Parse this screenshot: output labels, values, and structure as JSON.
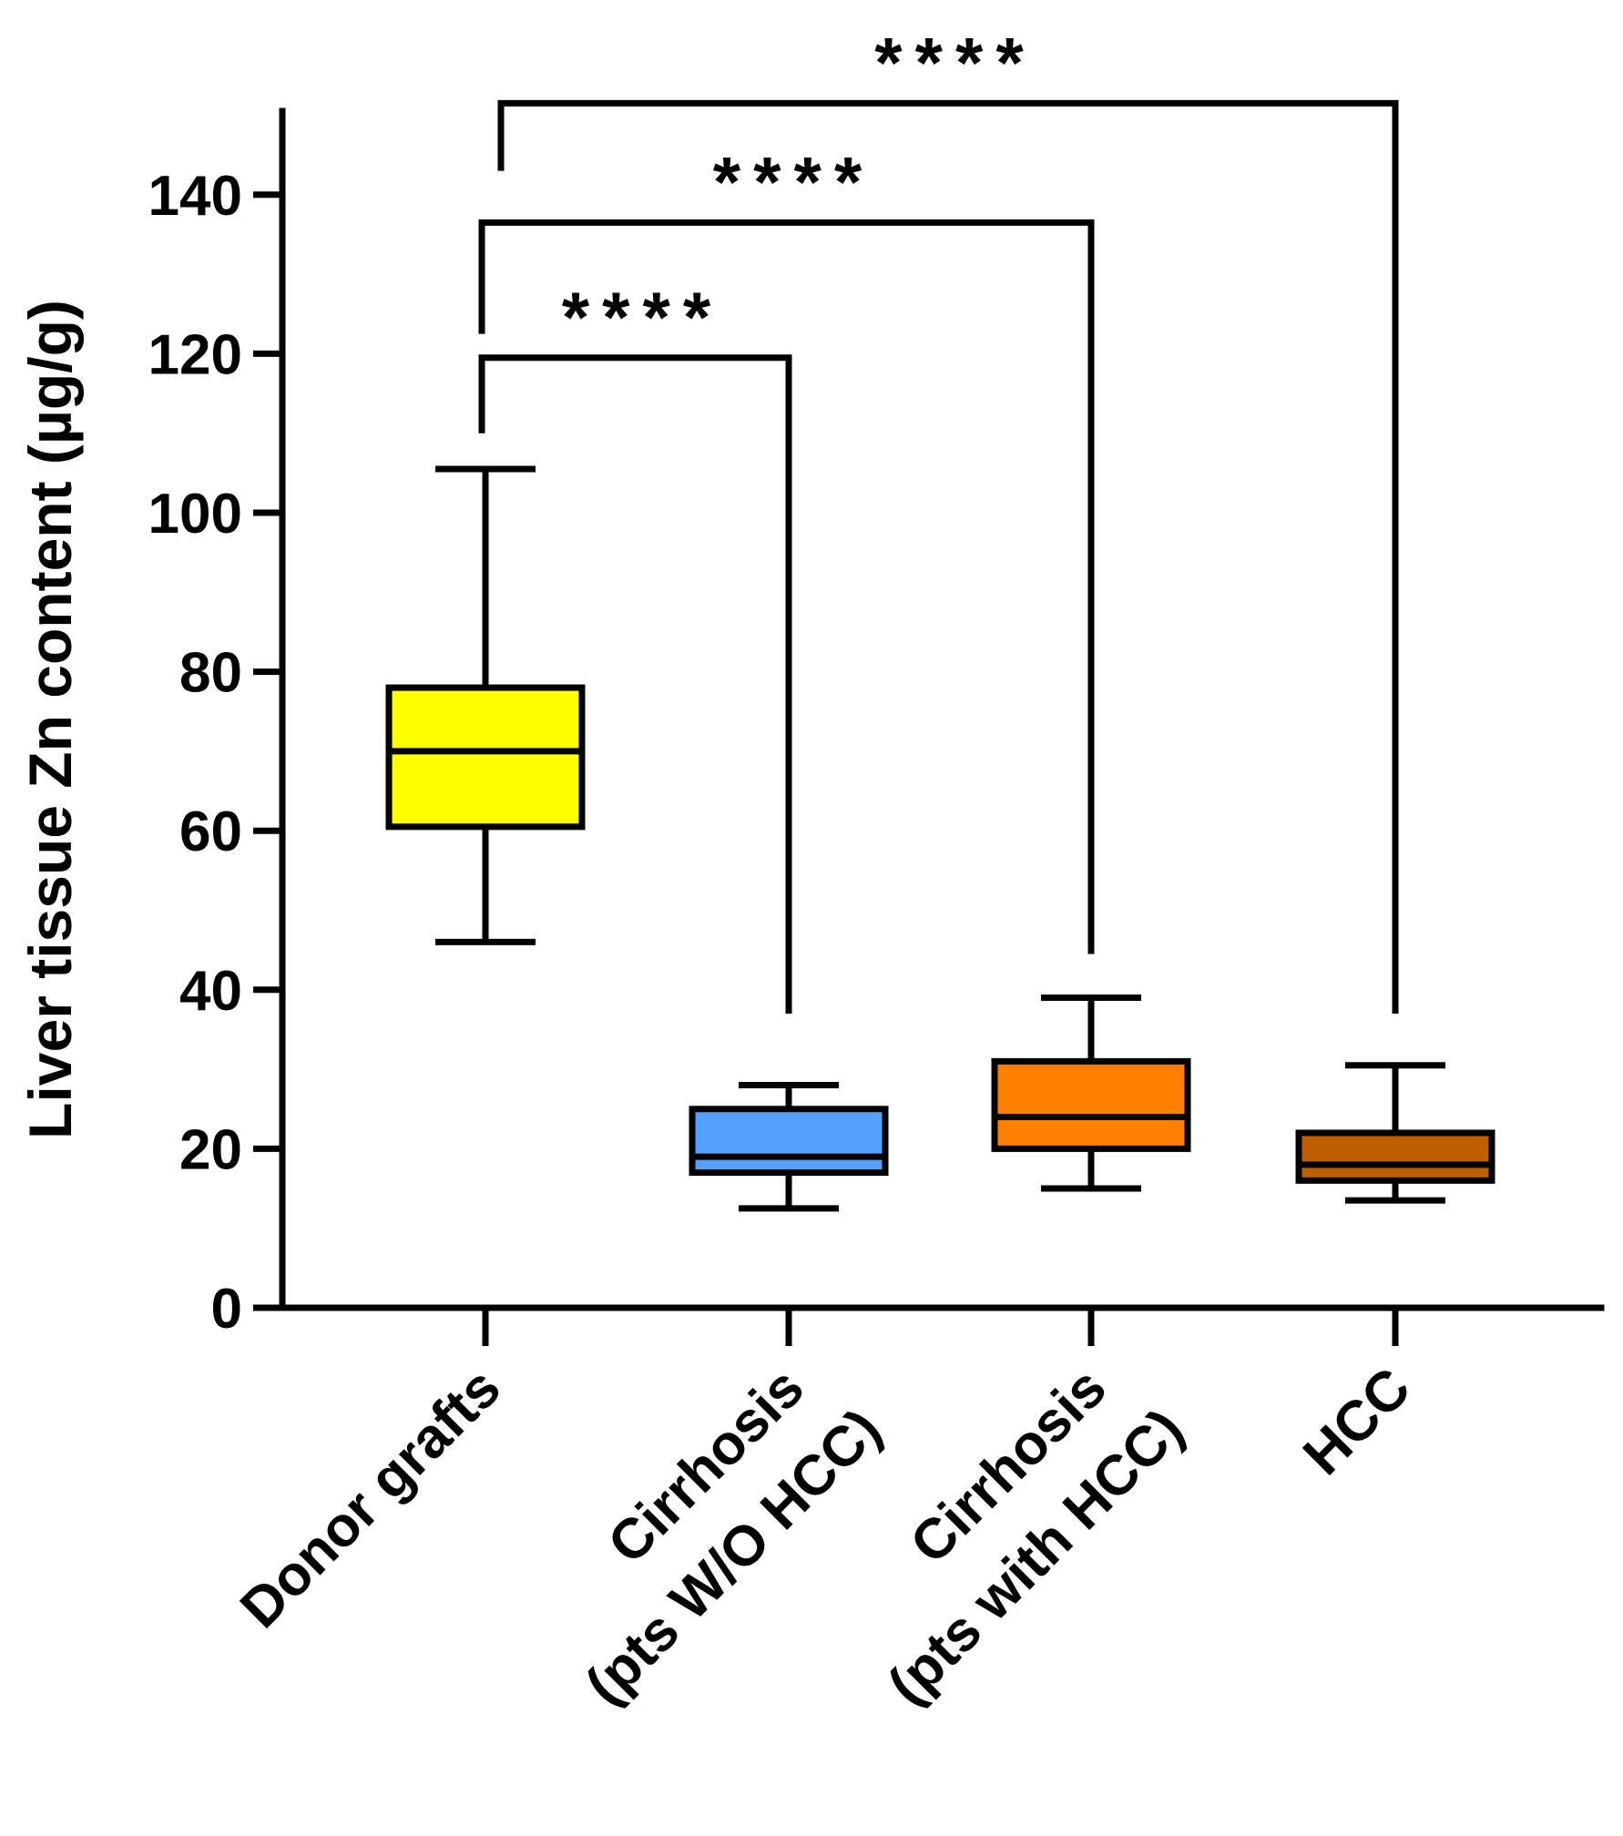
{
  "chart_data": {
    "type": "box",
    "title": "",
    "xlabel": "",
    "ylabel": "Liver tissue Zn content (µg/g)",
    "ylim": [
      0,
      150
    ],
    "yticks": [
      0,
      20,
      40,
      60,
      80,
      100,
      120,
      140
    ],
    "categories": [
      {
        "line1": "Donor grafts",
        "line2": ""
      },
      {
        "line1": "Cirrhosis",
        "line2": "(pts W/O HCC)"
      },
      {
        "line1": "Cirrhosis",
        "line2": "(pts with HCC)"
      },
      {
        "line1": "HCC",
        "line2": ""
      }
    ],
    "boxes": [
      {
        "name": "Donor grafts",
        "min": 46,
        "q1": 60.5,
        "median": 70,
        "q3": 78,
        "max": 105.5,
        "color": "#FFFF00"
      },
      {
        "name": "Cirrhosis (pts W/O HCC)",
        "min": 12.5,
        "q1": 17,
        "median": 19,
        "q3": 25,
        "max": 28,
        "color": "#559FFF"
      },
      {
        "name": "Cirrhosis (pts with HCC)",
        "min": 15,
        "q1": 20,
        "median": 24,
        "q3": 31,
        "max": 39,
        "color": "#FF8000"
      },
      {
        "name": "HCC",
        "min": 13.5,
        "q1": 16,
        "median": 18,
        "q3": 22,
        "max": 30.5,
        "color": "#BF6000"
      }
    ],
    "annotations": [
      {
        "from": 0,
        "to": 1,
        "y": 119.5,
        "label": "****"
      },
      {
        "from": 0,
        "to": 2,
        "y": 136.5,
        "label": "****"
      },
      {
        "from": 0,
        "to": 3,
        "y": 151.5,
        "label": "****"
      }
    ]
  }
}
